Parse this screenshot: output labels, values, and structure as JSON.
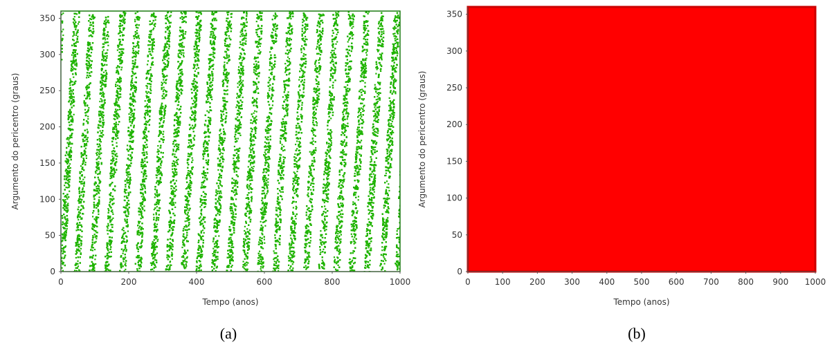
{
  "colors": {
    "panel_a": "#1fb300",
    "panel_b": "#ff0000",
    "axis": "#555555"
  },
  "chart_data": [
    {
      "type": "scatter",
      "caption": "(a)",
      "xlabel": "Tempo (anos)",
      "ylabel": "Argumento do pericentro (graus)",
      "xlim": [
        0,
        1000
      ],
      "ylim": [
        0,
        360
      ],
      "xticks": [
        "0",
        "200",
        "400",
        "600",
        "800",
        "1000"
      ],
      "yticks": [
        "0",
        "50",
        "100",
        "150",
        "200",
        "250",
        "300",
        "350"
      ],
      "circulation_period_years": 45,
      "series_color": "#1fb300"
    },
    {
      "type": "scatter",
      "caption": "(b)",
      "xlabel": "Tempo (anos)",
      "ylabel": "Argumento do pericentro (graus)",
      "xlim": [
        0,
        1000
      ],
      "ylim": [
        0,
        360
      ],
      "xticks": [
        "0",
        "100",
        "200",
        "300",
        "400",
        "500",
        "600",
        "700",
        "800",
        "900",
        "1000"
      ],
      "yticks": [
        "0",
        "50",
        "100",
        "150",
        "200",
        "250",
        "300",
        "350"
      ],
      "series_color": "#ff0000"
    }
  ]
}
